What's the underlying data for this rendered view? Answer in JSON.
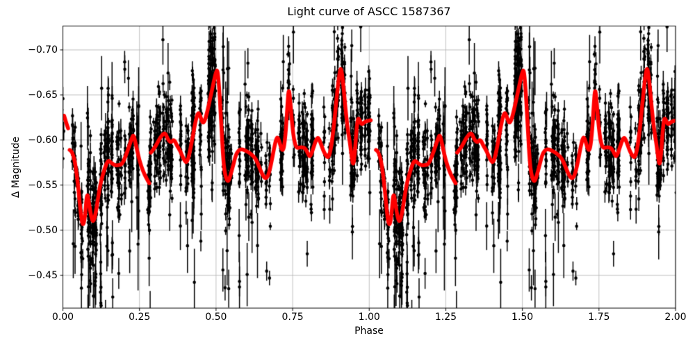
{
  "title": "Light curve of ASCC 1587367",
  "chart_data": {
    "type": "scatter",
    "title": "Light curve of ASCC 1587367",
    "xlabel": "Phase",
    "ylabel": "Δ Magnitude",
    "xlim": [
      0.0,
      2.0
    ],
    "ylim_top": -0.7265,
    "ylim_bottom": -0.4135,
    "y_inverted": true,
    "grid": true,
    "legend": "none",
    "xticks": {
      "values": [
        0.0,
        0.25,
        0.5,
        0.75,
        1.0,
        1.25,
        1.5,
        1.75,
        2.0
      ],
      "labels": [
        "0.00",
        "0.25",
        "0.50",
        "0.75",
        "1.00",
        "1.25",
        "1.50",
        "1.75",
        "2.00"
      ]
    },
    "yticks": {
      "values": [
        -0.7,
        -0.65,
        -0.6,
        -0.55,
        -0.5,
        -0.45
      ],
      "labels": [
        "−0.70",
        "−0.65",
        "−0.60",
        "−0.55",
        "−0.50",
        "−0.45"
      ]
    },
    "colors": {
      "curve": "#ff0000",
      "marker": "#000000",
      "grid": "#b0b0b0",
      "spine": "#000000",
      "background": "#ffffff",
      "text": "#000000"
    },
    "curve_style": {
      "line_width": 5.5
    },
    "marker_style": {
      "radius": 2.3,
      "errorbar_width": 1.5
    },
    "smoothed_curve": {
      "note": "phase-folded running-median curve, one period, repeated at phase+1",
      "segments": [
        {
          "name": "edge-tail",
          "offsets": [
            0
          ],
          "points": [
            [
              0.004,
              -0.627
            ],
            [
              0.01,
              -0.62
            ],
            [
              0.017,
              -0.613
            ]
          ]
        },
        {
          "name": "part-1",
          "offsets": [
            0,
            1
          ],
          "points": [
            [
              0.022,
              -0.589
            ],
            [
              0.034,
              -0.587
            ],
            [
              0.048,
              -0.556
            ],
            [
              0.058,
              -0.518
            ],
            [
              0.065,
              -0.504
            ],
            [
              0.072,
              -0.513
            ],
            [
              0.079,
              -0.544
            ],
            [
              0.086,
              -0.528
            ],
            [
              0.094,
              -0.512
            ],
            [
              0.1,
              -0.509
            ],
            [
              0.108,
              -0.52
            ],
            [
              0.118,
              -0.543
            ],
            [
              0.125,
              -0.555
            ],
            [
              0.135,
              -0.567
            ],
            [
              0.147,
              -0.578
            ],
            [
              0.157,
              -0.575
            ],
            [
              0.168,
              -0.572
            ],
            [
              0.18,
              -0.572
            ],
            [
              0.193,
              -0.573
            ],
            [
              0.205,
              -0.582
            ],
            [
              0.215,
              -0.592
            ],
            [
              0.224,
              -0.601
            ],
            [
              0.231,
              -0.607
            ],
            [
              0.24,
              -0.592
            ],
            [
              0.25,
              -0.577
            ],
            [
              0.262,
              -0.565
            ],
            [
              0.272,
              -0.558
            ],
            [
              0.282,
              -0.552
            ]
          ]
        },
        {
          "name": "part-2",
          "offsets": [
            0,
            1
          ],
          "points": [
            [
              0.287,
              -0.586
            ],
            [
              0.297,
              -0.59
            ],
            [
              0.307,
              -0.596
            ],
            [
              0.318,
              -0.603
            ],
            [
              0.333,
              -0.609
            ],
            [
              0.342,
              -0.601
            ],
            [
              0.352,
              -0.597
            ],
            [
              0.363,
              -0.601
            ],
            [
              0.372,
              -0.594
            ],
            [
              0.383,
              -0.588
            ],
            [
              0.394,
              -0.579
            ],
            [
              0.404,
              -0.574
            ],
            [
              0.413,
              -0.584
            ],
            [
              0.424,
              -0.604
            ],
            [
              0.433,
              -0.621
            ],
            [
              0.442,
              -0.632
            ],
            [
              0.45,
              -0.625
            ],
            [
              0.457,
              -0.618
            ],
            [
              0.465,
              -0.623
            ],
            [
              0.473,
              -0.634
            ],
            [
              0.482,
              -0.648
            ],
            [
              0.492,
              -0.664
            ],
            [
              0.5,
              -0.676
            ],
            [
              0.505,
              -0.678
            ],
            [
              0.511,
              -0.655
            ],
            [
              0.518,
              -0.61
            ],
            [
              0.525,
              -0.571
            ],
            [
              0.532,
              -0.558
            ],
            [
              0.54,
              -0.553
            ],
            [
              0.548,
              -0.562
            ],
            [
              0.556,
              -0.572
            ],
            [
              0.565,
              -0.584
            ],
            [
              0.574,
              -0.589
            ],
            [
              0.585,
              -0.59
            ],
            [
              0.597,
              -0.588
            ],
            [
              0.608,
              -0.586
            ],
            [
              0.619,
              -0.583
            ],
            [
              0.63,
              -0.579
            ],
            [
              0.641,
              -0.57
            ],
            [
              0.652,
              -0.561
            ],
            [
              0.661,
              -0.557
            ],
            [
              0.67,
              -0.56
            ],
            [
              0.679,
              -0.572
            ],
            [
              0.69,
              -0.592
            ],
            [
              0.699,
              -0.605
            ],
            [
              0.707,
              -0.598
            ],
            [
              0.714,
              -0.589
            ],
            [
              0.721,
              -0.589
            ],
            [
              0.728,
              -0.61
            ],
            [
              0.734,
              -0.645
            ],
            [
              0.738,
              -0.658
            ],
            [
              0.743,
              -0.64
            ],
            [
              0.749,
              -0.615
            ],
            [
              0.756,
              -0.597
            ],
            [
              0.764,
              -0.591
            ],
            [
              0.773,
              -0.592
            ],
            [
              0.782,
              -0.592
            ],
            [
              0.791,
              -0.591
            ],
            [
              0.8,
              -0.585
            ],
            [
              0.806,
              -0.581
            ],
            [
              0.814,
              -0.587
            ],
            [
              0.823,
              -0.597
            ],
            [
              0.832,
              -0.604
            ],
            [
              0.84,
              -0.598
            ],
            [
              0.849,
              -0.589
            ],
            [
              0.858,
              -0.583
            ],
            [
              0.867,
              -0.58
            ],
            [
              0.875,
              -0.59
            ],
            [
              0.884,
              -0.613
            ],
            [
              0.893,
              -0.645
            ],
            [
              0.901,
              -0.67
            ],
            [
              0.907,
              -0.682
            ],
            [
              0.913,
              -0.67
            ],
            [
              0.921,
              -0.64
            ],
            [
              0.929,
              -0.614
            ],
            [
              0.937,
              -0.597
            ],
            [
              0.943,
              -0.581
            ],
            [
              0.948,
              -0.571
            ],
            [
              0.953,
              -0.585
            ],
            [
              0.958,
              -0.61
            ],
            [
              0.963,
              -0.625
            ],
            [
              0.969,
              -0.622
            ],
            [
              0.975,
              -0.617
            ],
            [
              0.982,
              -0.619
            ],
            [
              0.99,
              -0.621
            ],
            [
              1.005,
              -0.622
            ]
          ]
        }
      ]
    },
    "scatter_points": {
      "note": "dense phase-folded photometric measurements with vertical error bars, plotted at phase and phase+1; synthesized from seeded clusters around the smoothed curve",
      "seed": 7,
      "x_jitter_sigma": 0.0013,
      "clusters": [
        {
          "p0": 0.0,
          "p1": 0.012,
          "cols": 2,
          "nmin": 3,
          "nmax": 8,
          "sigma": 0.02,
          "down": 0.1,
          "up": 0.1
        },
        {
          "p0": 0.025,
          "p1": 0.055,
          "cols": 4,
          "nmin": 6,
          "nmax": 16,
          "sigma": 0.02,
          "down": 0.3,
          "up": 0.04
        },
        {
          "p0": 0.055,
          "p1": 0.125,
          "cols": 9,
          "nmin": 12,
          "nmax": 30,
          "sigma": 0.03,
          "down": 0.4,
          "up": 0.05
        },
        {
          "p0": 0.125,
          "p1": 0.185,
          "cols": 8,
          "nmin": 10,
          "nmax": 26,
          "sigma": 0.026,
          "down": 0.25,
          "up": 0.08
        },
        {
          "p0": 0.185,
          "p1": 0.235,
          "cols": 6,
          "nmin": 8,
          "nmax": 18,
          "sigma": 0.022,
          "down": 0.12,
          "up": 0.1
        },
        {
          "p0": 0.238,
          "p1": 0.252,
          "cols": 2,
          "nmin": 5,
          "nmax": 9,
          "sigma": 0.035,
          "down": 0.55,
          "up": 0.02,
          "longbars": true
        },
        {
          "p0": 0.26,
          "p1": 0.35,
          "cols": 10,
          "nmin": 10,
          "nmax": 26,
          "sigma": 0.024,
          "down": 0.1,
          "up": 0.12
        },
        {
          "p0": 0.35,
          "p1": 0.45,
          "cols": 11,
          "nmin": 10,
          "nmax": 28,
          "sigma": 0.027,
          "down": 0.22,
          "up": 0.1
        },
        {
          "p0": 0.45,
          "p1": 0.545,
          "cols": 11,
          "nmin": 14,
          "nmax": 34,
          "sigma": 0.03,
          "down": 0.12,
          "up": 0.28
        },
        {
          "p0": 0.545,
          "p1": 0.625,
          "cols": 8,
          "nmin": 8,
          "nmax": 20,
          "sigma": 0.024,
          "down": 0.18,
          "up": 0.04
        },
        {
          "p0": 0.625,
          "p1": 0.7,
          "cols": 8,
          "nmin": 6,
          "nmax": 16,
          "sigma": 0.022,
          "down": 0.22,
          "up": 0.04
        },
        {
          "p0": 0.7,
          "p1": 0.78,
          "cols": 8,
          "nmin": 8,
          "nmax": 20,
          "sigma": 0.024,
          "down": 0.08,
          "up": 0.14
        },
        {
          "p0": 0.78,
          "p1": 0.88,
          "cols": 10,
          "nmin": 10,
          "nmax": 24,
          "sigma": 0.026,
          "down": 0.22,
          "up": 0.06
        },
        {
          "p0": 0.88,
          "p1": 0.945,
          "cols": 8,
          "nmin": 12,
          "nmax": 28,
          "sigma": 0.027,
          "down": 0.06,
          "up": 0.22
        },
        {
          "p0": 0.945,
          "p1": 1.005,
          "cols": 7,
          "nmin": 12,
          "nmax": 28,
          "sigma": 0.022,
          "down": 0.06,
          "up": 0.12
        }
      ]
    }
  }
}
